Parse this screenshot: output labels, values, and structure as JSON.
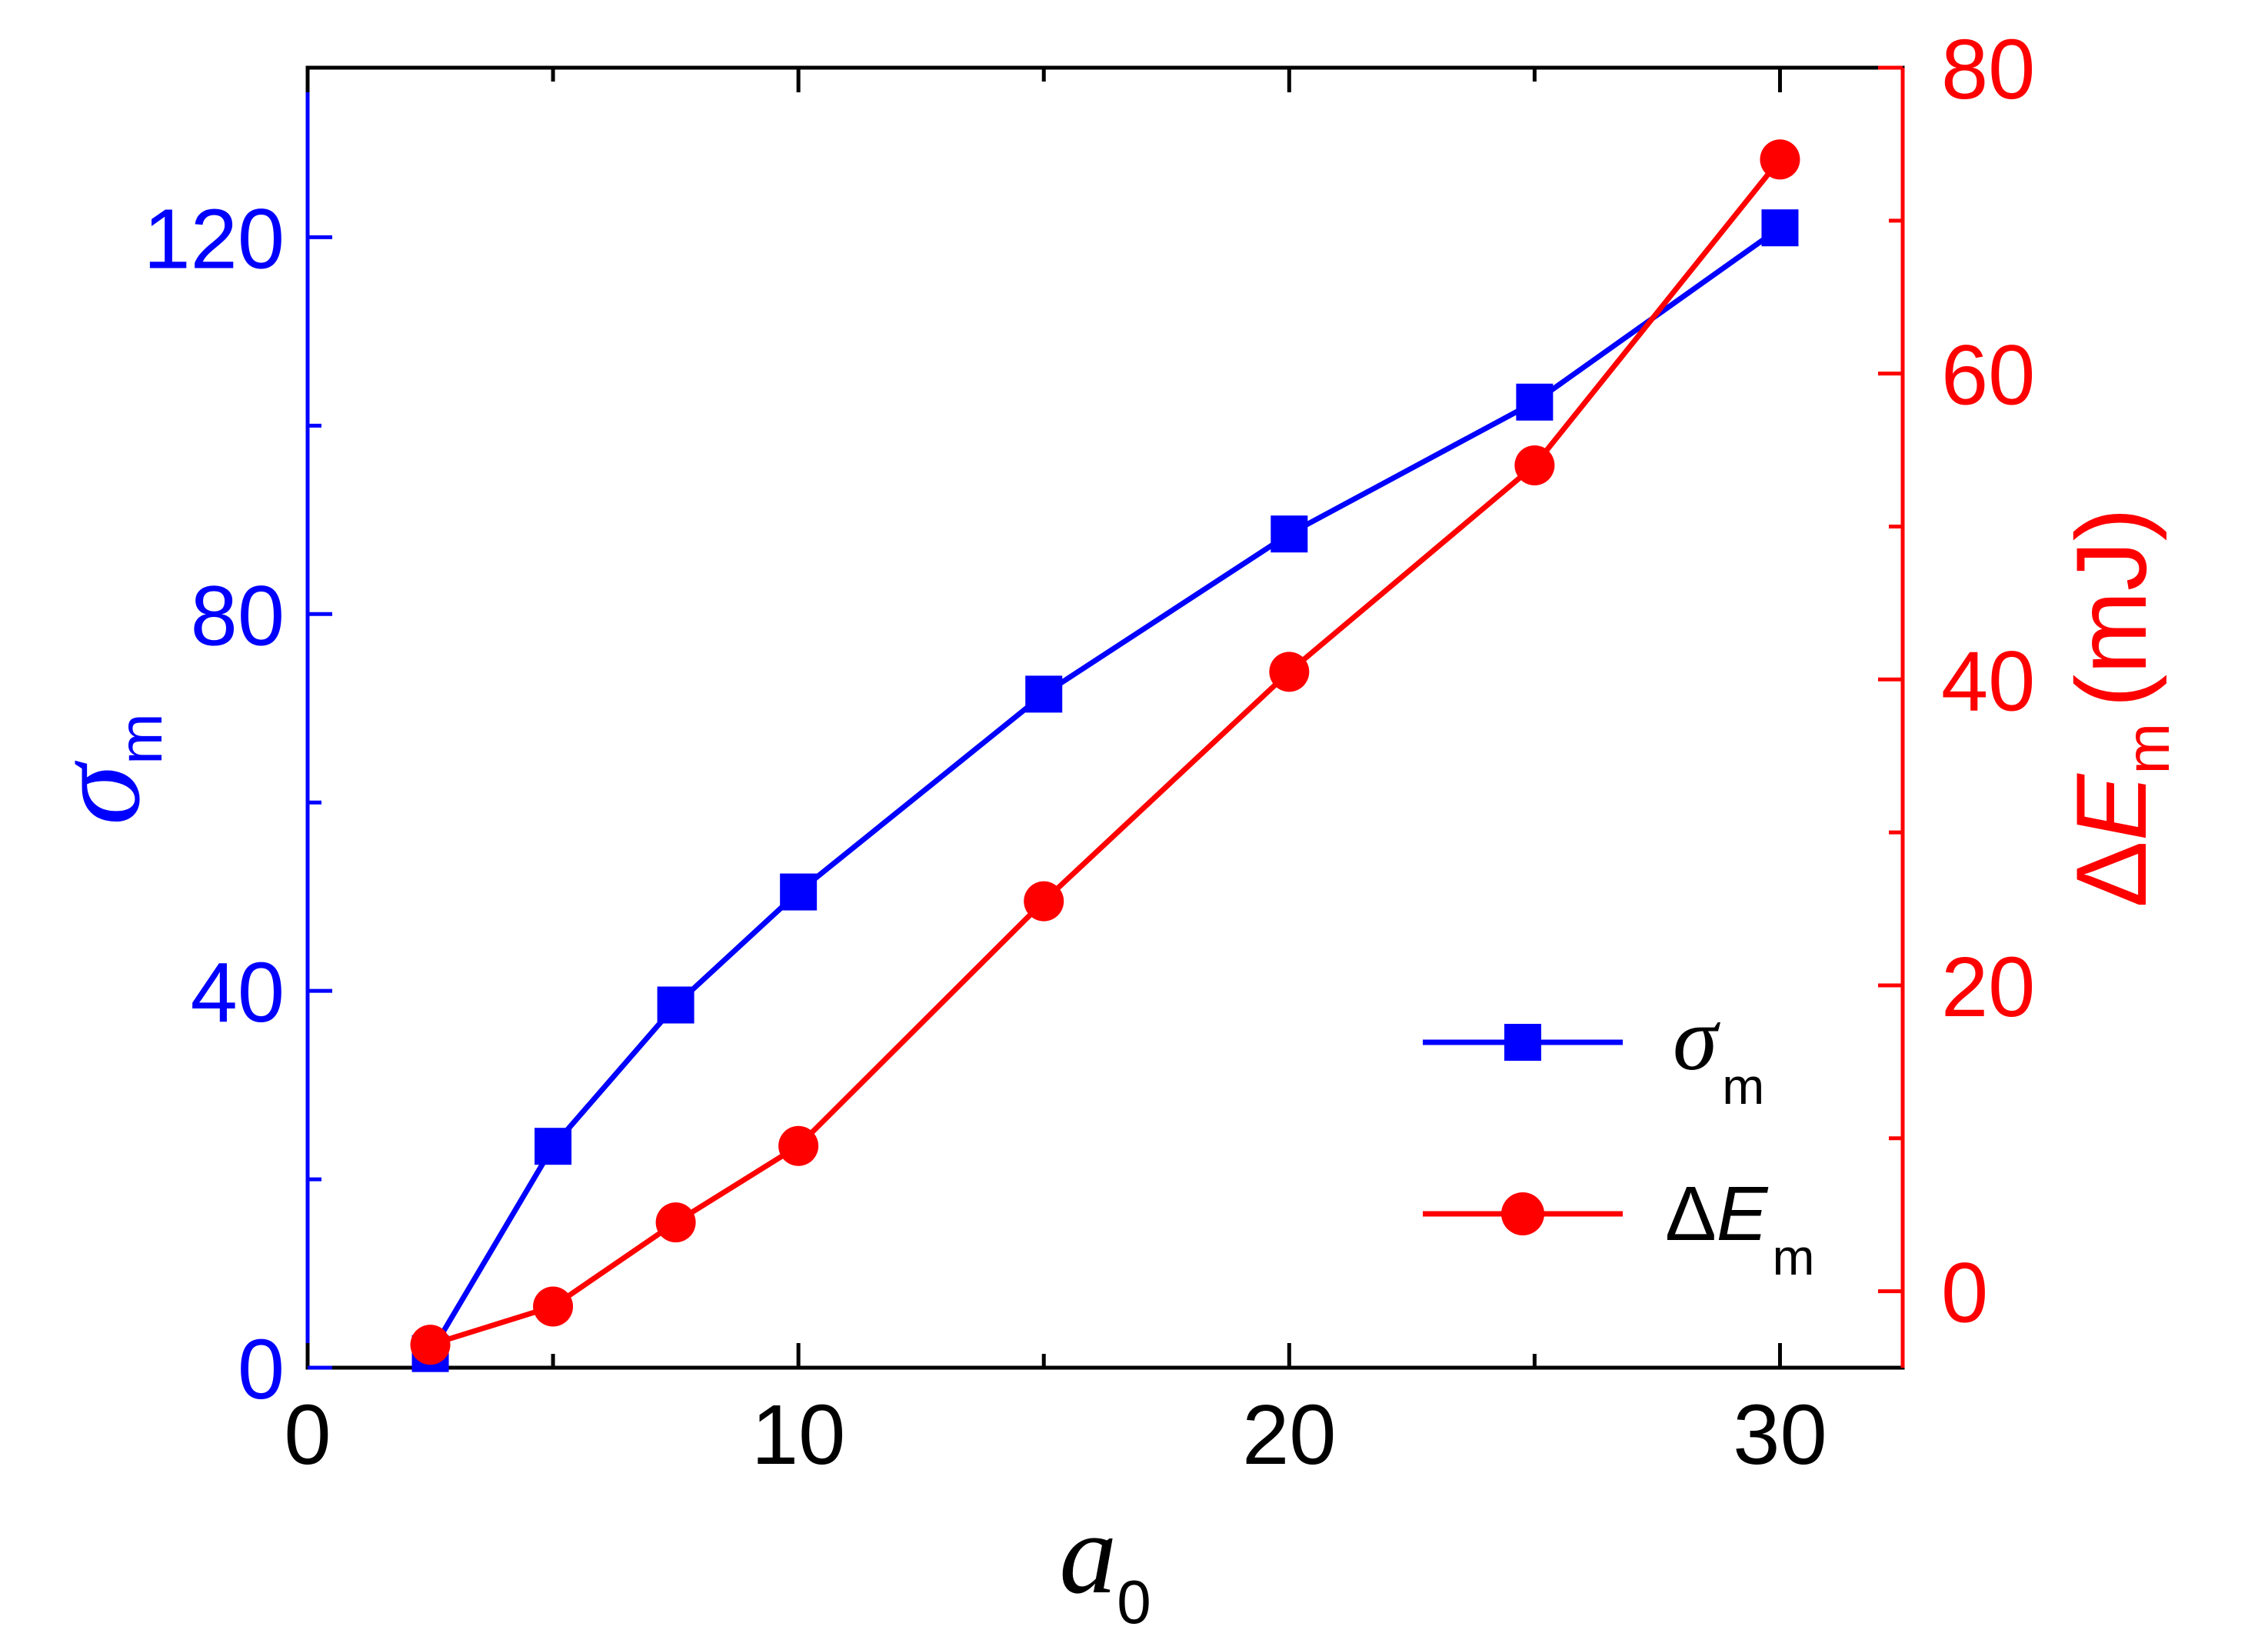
{
  "chart_data": {
    "type": "line",
    "xlabel": {
      "main": "a",
      "sub": "0"
    },
    "ylabel_left": {
      "main": "σ",
      "sub": "m"
    },
    "ylabel_right": {
      "prefix": "Δ",
      "main": "E",
      "sub": "m",
      "unit": "(mJ)"
    },
    "xlim": [
      0,
      32.5
    ],
    "ylim_left": [
      0,
      138
    ],
    "ylim_right": [
      -5,
      80
    ],
    "x_ticks": [
      0,
      10,
      20,
      30
    ],
    "x_ticks_minor": [
      5,
      15,
      25
    ],
    "y_left_ticks": [
      0,
      40,
      80,
      120
    ],
    "y_left_ticks_minor": [
      20,
      60,
      100
    ],
    "y_right_ticks": [
      0,
      20,
      40,
      60,
      80
    ],
    "y_right_ticks_minor": [
      10,
      30,
      50,
      70
    ],
    "colors": {
      "left_axis": "#0000ff",
      "right_axis": "#ff0000",
      "x_axis": "#000000"
    },
    "legend": {
      "position": "lower-right"
    },
    "series": [
      {
        "name": {
          "main": "σ",
          "sub": "m"
        },
        "axis": "left",
        "marker": "square",
        "color": "#0000ff",
        "x": [
          2.5,
          5,
          7.5,
          10,
          15,
          20,
          25,
          30
        ],
        "y": [
          1.5,
          23.5,
          38.5,
          50.5,
          71.5,
          88.5,
          102.5,
          121
        ]
      },
      {
        "name": {
          "prefix": "Δ",
          "main": "E",
          "sub": "m"
        },
        "axis": "right",
        "marker": "circle",
        "color": "#ff0000",
        "x": [
          2.5,
          5,
          7.5,
          10,
          15,
          20,
          25,
          30
        ],
        "y": [
          -3.5,
          -1,
          4.5,
          9.5,
          25.5,
          40.5,
          54,
          74
        ]
      }
    ]
  }
}
